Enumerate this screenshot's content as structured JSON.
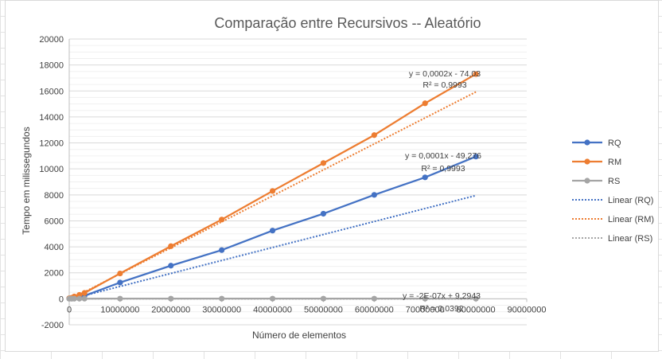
{
  "chart_data": {
    "type": "scatter",
    "title": "Comparação entre Recursivos -- Aleatório",
    "xlabel": "Número de elementos",
    "ylabel": "Tempo em milissegundos",
    "xlim": [
      0,
      90000000
    ],
    "ylim": [
      -2000,
      20000
    ],
    "x_ticks": [
      "0",
      "10000000",
      "20000000",
      "30000000",
      "40000000",
      "50000000",
      "60000000",
      "70000000",
      "80000000",
      "90000000"
    ],
    "y_ticks": [
      "-2000",
      "0",
      "2000",
      "4000",
      "6000",
      "8000",
      "10000",
      "12000",
      "14000",
      "16000",
      "18000",
      "20000"
    ],
    "grid": true,
    "legend_position": "right",
    "series": [
      {
        "name": "RQ",
        "color": "#4472C4",
        "x": [
          0,
          500000,
          1000000,
          2000000,
          3000000,
          10000000,
          20000000,
          30000000,
          40000000,
          50000000,
          60000000,
          70000000,
          80000000
        ],
        "y": [
          20,
          50,
          90,
          170,
          230,
          1250,
          2550,
          3750,
          5250,
          6550,
          8000,
          9350,
          10950
        ]
      },
      {
        "name": "RM",
        "color": "#ED7D31",
        "x": [
          0,
          500000,
          1000000,
          2000000,
          3000000,
          10000000,
          20000000,
          30000000,
          40000000,
          50000000,
          60000000,
          70000000,
          80000000
        ],
        "y": [
          40,
          80,
          180,
          300,
          450,
          1950,
          4050,
          6100,
          8300,
          10450,
          12600,
          15050,
          17300
        ]
      },
      {
        "name": "RS",
        "color": "#A5A5A5",
        "x": [
          0,
          500000,
          1000000,
          2000000,
          3000000,
          10000000,
          20000000,
          30000000,
          40000000,
          50000000,
          60000000,
          70000000,
          80000000
        ],
        "y": [
          5,
          5,
          8,
          8,
          10,
          12,
          12,
          12,
          12,
          12,
          12,
          12,
          12
        ]
      }
    ],
    "trendlines": [
      {
        "name": "Linear (RQ)",
        "color": "#4472C4",
        "slope": 0.0001,
        "intercept": -49.276,
        "equation": "y = 0,0001x - 49,276",
        "r2": "R² = 0,9993"
      },
      {
        "name": "Linear (RM)",
        "color": "#ED7D31",
        "slope": 0.0002,
        "intercept": -74.03,
        "equation": "y = 0,0002x - 74,03",
        "r2": "R² = 0,9993"
      },
      {
        "name": "Linear (RS)",
        "color": "#A5A5A5",
        "slope": -2e-07,
        "intercept": 9.2943,
        "equation": "y = -2E-07x + 9,2943",
        "r2": "R² = 0,0392"
      }
    ]
  }
}
